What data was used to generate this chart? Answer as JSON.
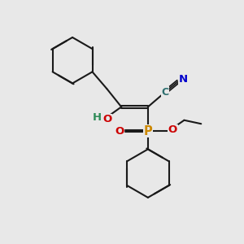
{
  "bg_color": "#e8e8e8",
  "bond_color": "#1a1a1a",
  "bond_width": 1.5,
  "atom_colors": {
    "C": "#2d6e6e",
    "N": "#0000cc",
    "O": "#cc0000",
    "P": "#cc8800",
    "H": "#2e8b57"
  },
  "font_size": 9.5
}
